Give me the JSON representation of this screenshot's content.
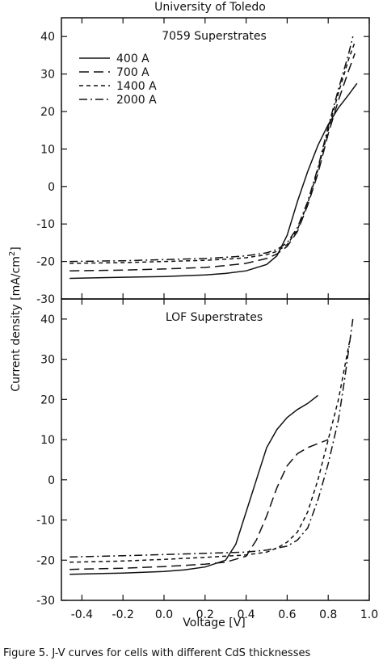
{
  "header": "University of Toledo",
  "caption": "Figure 5. J-V curves for cells with different CdS thicknesses",
  "colors": {
    "ink": "#111111",
    "background": "#ffffff"
  },
  "chart_data": [
    {
      "type": "line",
      "title": "7059 Superstrates",
      "xlim": [
        -0.5,
        1.0
      ],
      "ylim": [
        -30,
        45
      ],
      "xticks": [
        -0.4,
        -0.2,
        0.0,
        0.2,
        0.4,
        0.6,
        0.8,
        1.0
      ],
      "yticks": [
        -30,
        -20,
        -10,
        0,
        10,
        20,
        30,
        40
      ],
      "ytick_labels": [
        "-30",
        "-20",
        "-10",
        "0",
        "10",
        "20",
        "30",
        "40"
      ],
      "legend_position": "top-left",
      "series": [
        {
          "name": "400 A",
          "dash": "solid",
          "x": [
            -0.46,
            -0.2,
            0.0,
            0.2,
            0.3,
            0.4,
            0.5,
            0.55,
            0.6,
            0.65,
            0.7,
            0.75,
            0.8,
            0.85,
            0.9,
            0.94
          ],
          "y": [
            -24.5,
            -24.2,
            -24.0,
            -23.6,
            -23.2,
            -22.5,
            -20.8,
            -18.5,
            -13.0,
            -4.0,
            4.0,
            11.0,
            16.5,
            21.0,
            24.5,
            27.5
          ]
        },
        {
          "name": "700 A",
          "dash": "dashed",
          "x": [
            -0.46,
            -0.2,
            0.0,
            0.2,
            0.3,
            0.4,
            0.5,
            0.55,
            0.6,
            0.65,
            0.7,
            0.75,
            0.8,
            0.85,
            0.9,
            0.93
          ],
          "y": [
            -22.5,
            -22.3,
            -22.0,
            -21.6,
            -21.1,
            -20.5,
            -19.2,
            -18.0,
            -16.0,
            -12.0,
            -5.0,
            3.5,
            14.0,
            23.0,
            31.0,
            35.5
          ]
        },
        {
          "name": "1400 A",
          "dash": "short-dashed",
          "x": [
            -0.46,
            -0.2,
            0.0,
            0.2,
            0.3,
            0.4,
            0.5,
            0.55,
            0.6,
            0.65,
            0.7,
            0.75,
            0.8,
            0.85,
            0.9,
            0.93
          ],
          "y": [
            -20.5,
            -20.3,
            -20.0,
            -19.7,
            -19.4,
            -19.0,
            -18.2,
            -17.3,
            -15.5,
            -11.5,
            -4.5,
            4.5,
            15.0,
            25.0,
            34.0,
            38.5
          ]
        },
        {
          "name": "2000 A",
          "dash": "dash-dot",
          "x": [
            -0.46,
            -0.2,
            0.0,
            0.2,
            0.3,
            0.4,
            0.5,
            0.55,
            0.6,
            0.65,
            0.7,
            0.75,
            0.8,
            0.85,
            0.9,
            0.92
          ],
          "y": [
            -20.0,
            -19.8,
            -19.5,
            -19.2,
            -18.9,
            -18.5,
            -17.7,
            -16.8,
            -15.0,
            -11.0,
            -4.0,
            5.0,
            16.0,
            26.0,
            35.5,
            40.0
          ]
        }
      ]
    },
    {
      "type": "line",
      "title": "LOF Superstrates",
      "xlabel": "Voltage [V]",
      "xlim": [
        -0.5,
        1.0
      ],
      "ylim": [
        -30,
        45
      ],
      "xticks": [
        -0.4,
        -0.2,
        0.0,
        0.2,
        0.4,
        0.6,
        0.8,
        1.0
      ],
      "xtick_labels": [
        "-0.4",
        "-0.2",
        "0.0",
        "0.2",
        "0.4",
        "0.6",
        "0.8",
        "1.0"
      ],
      "yticks": [
        -30,
        -20,
        -10,
        0,
        10,
        20,
        30,
        40
      ],
      "ytick_labels": [
        "-30",
        "-20",
        "-10",
        "0",
        "10",
        "20",
        "30",
        "40"
      ],
      "series": [
        {
          "name": "400 A",
          "dash": "solid",
          "x": [
            -0.46,
            -0.2,
            0.0,
            0.1,
            0.2,
            0.3,
            0.35,
            0.4,
            0.45,
            0.5,
            0.55,
            0.6,
            0.65,
            0.7,
            0.75
          ],
          "y": [
            -23.5,
            -23.2,
            -22.8,
            -22.4,
            -21.7,
            -20.0,
            -16.0,
            -8.0,
            0.0,
            8.0,
            12.5,
            15.5,
            17.5,
            19.0,
            21.0
          ]
        },
        {
          "name": "700 A",
          "dash": "dashed",
          "x": [
            -0.46,
            -0.2,
            0.0,
            0.2,
            0.3,
            0.4,
            0.45,
            0.5,
            0.55,
            0.6,
            0.65,
            0.7,
            0.75,
            0.8
          ],
          "y": [
            -22.3,
            -22.0,
            -21.6,
            -21.0,
            -20.5,
            -19.0,
            -15.0,
            -9.0,
            -2.0,
            3.5,
            6.5,
            8.0,
            9.0,
            10.0
          ]
        },
        {
          "name": "1400 A",
          "dash": "short-dashed",
          "x": [
            -0.46,
            -0.2,
            0.0,
            0.2,
            0.4,
            0.5,
            0.55,
            0.6,
            0.65,
            0.7,
            0.75,
            0.8,
            0.85,
            0.88,
            0.91
          ],
          "y": [
            -20.5,
            -20.2,
            -19.8,
            -19.3,
            -18.7,
            -18.0,
            -17.0,
            -15.5,
            -13.0,
            -8.0,
            0.0,
            10.0,
            20.0,
            28.0,
            36.0
          ]
        },
        {
          "name": "2000 A",
          "dash": "dash-dot",
          "x": [
            -0.46,
            -0.2,
            0.0,
            0.2,
            0.4,
            0.5,
            0.6,
            0.65,
            0.7,
            0.75,
            0.8,
            0.85,
            0.88,
            0.92
          ],
          "y": [
            -19.2,
            -18.9,
            -18.6,
            -18.3,
            -18.0,
            -17.5,
            -16.5,
            -15.0,
            -12.0,
            -5.0,
            4.0,
            15.0,
            25.0,
            40.0
          ]
        }
      ]
    }
  ],
  "shared_ylabel": "Current density [mA/cm",
  "shared_ylabel_sup": "2",
  "shared_ylabel_end": "]"
}
